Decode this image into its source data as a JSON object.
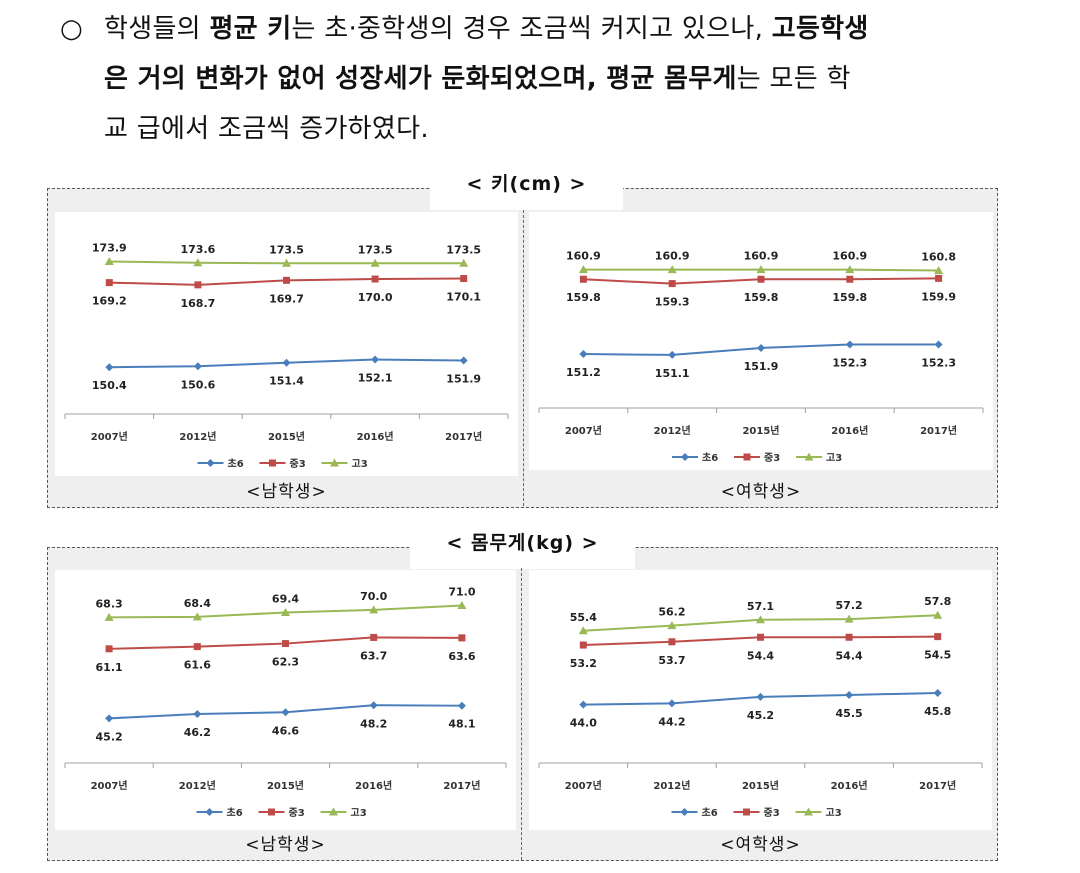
{
  "intro": {
    "bullet": "○",
    "line1": [
      {
        "text": "학생들의 ",
        "bold": false
      },
      {
        "text": "평균 키",
        "bold": true
      },
      {
        "text": "는 초·중학생의 경우 조금씩 커지고 있으나, ",
        "bold": false
      },
      {
        "text": "고등학생",
        "bold": true
      }
    ],
    "line2": [
      {
        "text": "은 거의 변화가 없어 성장세가 둔화되었으며, 평균 몸무게",
        "bold": true
      },
      {
        "text": "는 모든 학",
        "bold": false
      }
    ],
    "line3": [
      {
        "text": "교 급에서 조금씩 증가하였다.",
        "bold": false
      }
    ]
  },
  "sections": {
    "height": {
      "title": "< 키(cm) >"
    },
    "weight": {
      "title": "< 몸무게(kg) >"
    }
  },
  "colors": {
    "series": [
      "#4a7ebb",
      "#be4b48",
      "#98b954"
    ],
    "axis": "#a0a0a0"
  },
  "chart_data": [
    {
      "id": "height-male",
      "type": "line",
      "title": "",
      "caption": "<남학생>",
      "categories": [
        "2007년",
        "2012년",
        "2015년",
        "2016년",
        "2017년"
      ],
      "ylim": [
        140,
        180
      ],
      "series": [
        {
          "name": "초6",
          "values": [
            150.4,
            150.6,
            151.4,
            152.1,
            151.9
          ]
        },
        {
          "name": "중3",
          "values": [
            169.2,
            168.7,
            169.7,
            170.0,
            170.1
          ]
        },
        {
          "name": "고3",
          "values": [
            173.9,
            173.6,
            173.5,
            173.5,
            173.5
          ]
        }
      ],
      "legend": "bottom",
      "grid": false
    },
    {
      "id": "height-female",
      "type": "line",
      "title": "",
      "caption": "<여학생>",
      "categories": [
        "2007년",
        "2012년",
        "2015년",
        "2016년",
        "2017년"
      ],
      "ylim": [
        145,
        165
      ],
      "series": [
        {
          "name": "초6",
          "values": [
            151.2,
            151.1,
            151.9,
            152.3,
            152.3
          ]
        },
        {
          "name": "중3",
          "values": [
            159.8,
            159.3,
            159.8,
            159.8,
            159.9
          ]
        },
        {
          "name": "고3",
          "values": [
            160.9,
            160.9,
            160.9,
            160.9,
            160.8
          ]
        }
      ],
      "legend": "bottom",
      "grid": false
    },
    {
      "id": "weight-male",
      "type": "line",
      "title": "",
      "caption": "<남학생>",
      "categories": [
        "2007년",
        "2012년",
        "2015년",
        "2016년",
        "2017년"
      ],
      "ylim": [
        35,
        75
      ],
      "series": [
        {
          "name": "초6",
          "values": [
            45.2,
            46.2,
            46.6,
            48.2,
            48.1
          ]
        },
        {
          "name": "중3",
          "values": [
            61.1,
            61.6,
            62.3,
            63.7,
            63.6
          ]
        },
        {
          "name": "고3",
          "values": [
            68.3,
            68.4,
            69.4,
            70.0,
            71.0
          ]
        }
      ],
      "legend": "bottom",
      "grid": false
    },
    {
      "id": "weight-female",
      "type": "line",
      "title": "",
      "caption": "<여학생>",
      "categories": [
        "2007년",
        "2012년",
        "2015년",
        "2016년",
        "2017년"
      ],
      "ylim": [
        35,
        62
      ],
      "series": [
        {
          "name": "초6",
          "values": [
            44.0,
            44.2,
            45.2,
            45.5,
            45.8
          ]
        },
        {
          "name": "중3",
          "values": [
            53.2,
            53.7,
            54.4,
            54.4,
            54.5
          ]
        },
        {
          "name": "고3",
          "values": [
            55.4,
            56.2,
            57.1,
            57.2,
            57.8
          ]
        }
      ],
      "legend": "bottom",
      "grid": false
    }
  ]
}
